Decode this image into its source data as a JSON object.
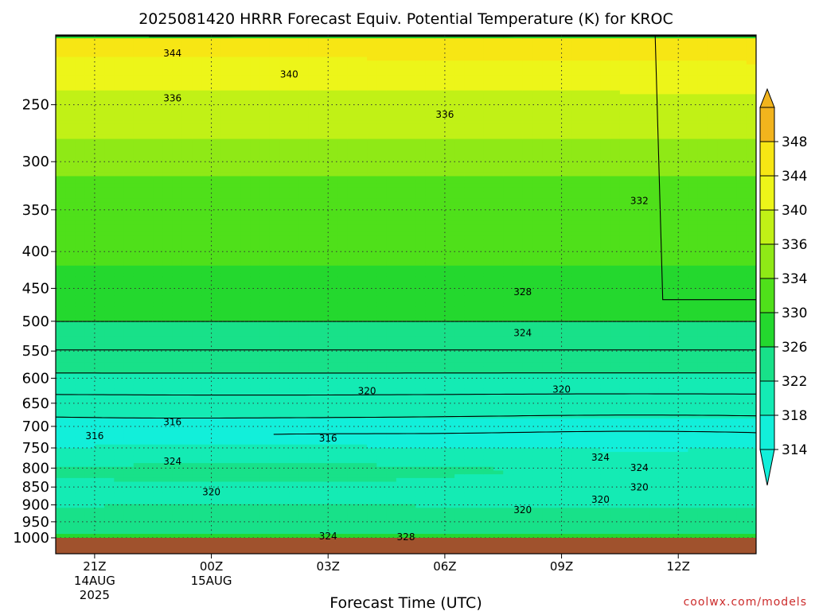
{
  "chart_data": {
    "type": "heatmap",
    "title": "2025081420 HRRR Forecast Equiv. Potential Temperature (K) for KROC",
    "xlabel": "Forecast Time (UTC)",
    "ylabel": "",
    "y_axis": "pressure (hPa), log scale, inverted",
    "ylim": [
      1000,
      200
    ],
    "y_ticks": [
      1000,
      950,
      900,
      850,
      800,
      750,
      700,
      650,
      600,
      550,
      500,
      450,
      400,
      350,
      300,
      250
    ],
    "x_ticks": [
      {
        "hours": 1,
        "label": "21Z",
        "sub1": "14AUG",
        "sub2": "2025"
      },
      {
        "hours": 4,
        "label": "00Z",
        "sub1": "15AUG",
        "sub2": ""
      },
      {
        "hours": 7,
        "label": "03Z",
        "sub1": "",
        "sub2": ""
      },
      {
        "hours": 10,
        "label": "06Z",
        "sub1": "",
        "sub2": ""
      },
      {
        "hours": 13,
        "label": "09Z",
        "sub1": "",
        "sub2": ""
      },
      {
        "hours": 16,
        "label": "12Z",
        "sub1": "",
        "sub2": ""
      }
    ],
    "xlim": [
      0,
      18
    ],
    "grid": true,
    "colorbar": {
      "levels": [
        314,
        318,
        322,
        326,
        330,
        334,
        336,
        340,
        344,
        348
      ],
      "labels": [
        "314",
        "318",
        "322",
        "326",
        "330",
        "334",
        "336",
        "340",
        "344",
        "348"
      ],
      "colors": [
        "#12efda",
        "#14ebb4",
        "#18e189",
        "#24d82e",
        "#4fe01a",
        "#8fe916",
        "#c1f116",
        "#edf519",
        "#f7e614",
        "#f2b41d"
      ],
      "placement": "right"
    },
    "contour_labels": [
      {
        "text": "344",
        "hours": 3.0,
        "pressure": 212
      },
      {
        "text": "340",
        "hours": 6.0,
        "pressure": 227
      },
      {
        "text": "336",
        "hours": 3.0,
        "pressure": 245
      },
      {
        "text": "336",
        "hours": 10.0,
        "pressure": 258
      },
      {
        "text": "332",
        "hours": 15.0,
        "pressure": 340
      },
      {
        "text": "328",
        "hours": 12.0,
        "pressure": 455
      },
      {
        "text": "324",
        "hours": 12.0,
        "pressure": 519
      },
      {
        "text": "320",
        "hours": 8.0,
        "pressure": 625
      },
      {
        "text": "320",
        "hours": 13.0,
        "pressure": 622
      },
      {
        "text": "316",
        "hours": 3.0,
        "pressure": 690
      },
      {
        "text": "316",
        "hours": 1.0,
        "pressure": 722
      },
      {
        "text": "316",
        "hours": 7.0,
        "pressure": 727
      },
      {
        "text": "324",
        "hours": 3.0,
        "pressure": 783
      },
      {
        "text": "324",
        "hours": 14.0,
        "pressure": 773
      },
      {
        "text": "324",
        "hours": 15.0,
        "pressure": 799
      },
      {
        "text": "320",
        "hours": 4.0,
        "pressure": 864
      },
      {
        "text": "320",
        "hours": 15.0,
        "pressure": 851
      },
      {
        "text": "320",
        "hours": 14.0,
        "pressure": 885
      },
      {
        "text": "320",
        "hours": 12.0,
        "pressure": 915
      },
      {
        "text": "324",
        "hours": 7.0,
        "pressure": 995
      },
      {
        "text": "328",
        "hours": 9.0,
        "pressure": 998
      }
    ]
  },
  "credit": "coolwx.com/models"
}
